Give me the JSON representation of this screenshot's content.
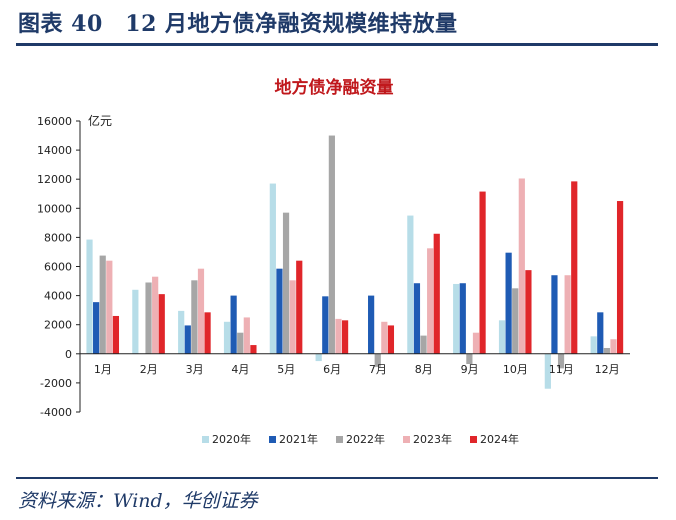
{
  "figure": {
    "title": "图表 40　12 月地方债净融资规模维持放量",
    "source": "资料来源：Wind，华创证券"
  },
  "chart_data": {
    "type": "bar",
    "title": "地方债净融资量",
    "unit_label": "亿元",
    "categories": [
      "1月",
      "2月",
      "3月",
      "4月",
      "5月",
      "6月",
      "7月",
      "8月",
      "9月",
      "10月",
      "11月",
      "12月"
    ],
    "ylim": [
      -4000,
      16000
    ],
    "yticks": [
      "16000",
      "14000",
      "12000",
      "10000",
      "8000",
      "6000",
      "4000",
      "2000",
      "0",
      "-2000",
      "-4000"
    ],
    "grid": false,
    "legend_position": "bottom",
    "series": [
      {
        "name": "2020年",
        "color": "#b7dde8",
        "values": [
          7850,
          4400,
          2950,
          2200,
          11700,
          -500,
          0,
          9500,
          4800,
          2300,
          -2400,
          1200
        ]
      },
      {
        "name": "2021年",
        "color": "#1f5bb4",
        "values": [
          3550,
          0,
          1950,
          4000,
          5850,
          3950,
          4000,
          4850,
          4850,
          6950,
          5400,
          2850
        ]
      },
      {
        "name": "2022年",
        "color": "#a6a6a6",
        "values": [
          6750,
          4900,
          5050,
          1450,
          9700,
          15000,
          -900,
          1250,
          -700,
          4500,
          -1000,
          400
        ]
      },
      {
        "name": "2023年",
        "color": "#eeb0b4",
        "values": [
          6400,
          5300,
          5850,
          2500,
          5050,
          2400,
          2200,
          7250,
          1450,
          12050,
          5400,
          1000
        ]
      },
      {
        "name": "2024年",
        "color": "#e0262a",
        "values": [
          2600,
          4100,
          2850,
          600,
          6400,
          2300,
          1950,
          8250,
          11150,
          5750,
          11850,
          10500
        ]
      }
    ]
  }
}
